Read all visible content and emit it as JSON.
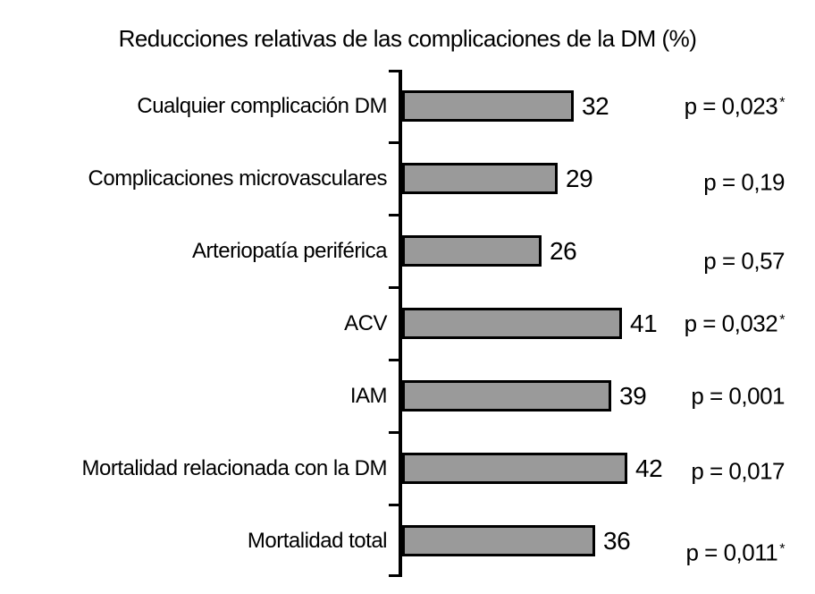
{
  "chart_data": {
    "type": "bar",
    "orientation": "horizontal",
    "title": "Reducciones relativas de las complicaciones de la DM (%)",
    "categories": [
      "Cualquier complicación DM",
      "Complicaciones microvasculares",
      "Arteriopatía periférica",
      "ACV",
      "IAM",
      "Mortalidad relacionada con la DM",
      "Mortalidad total"
    ],
    "values": [
      32,
      29,
      26,
      41,
      39,
      42,
      36
    ],
    "p_values": [
      "p = 0,023*",
      "p = 0,19",
      "p = 0,57",
      "p = 0,032*",
      "p = 0,001",
      "p = 0,017",
      "p = 0,011*"
    ],
    "value_unit": "%",
    "bar_color": "#9a9a9a",
    "axis_color": "#000000",
    "grid": false,
    "legend": false,
    "xlim": [
      0,
      47
    ]
  }
}
